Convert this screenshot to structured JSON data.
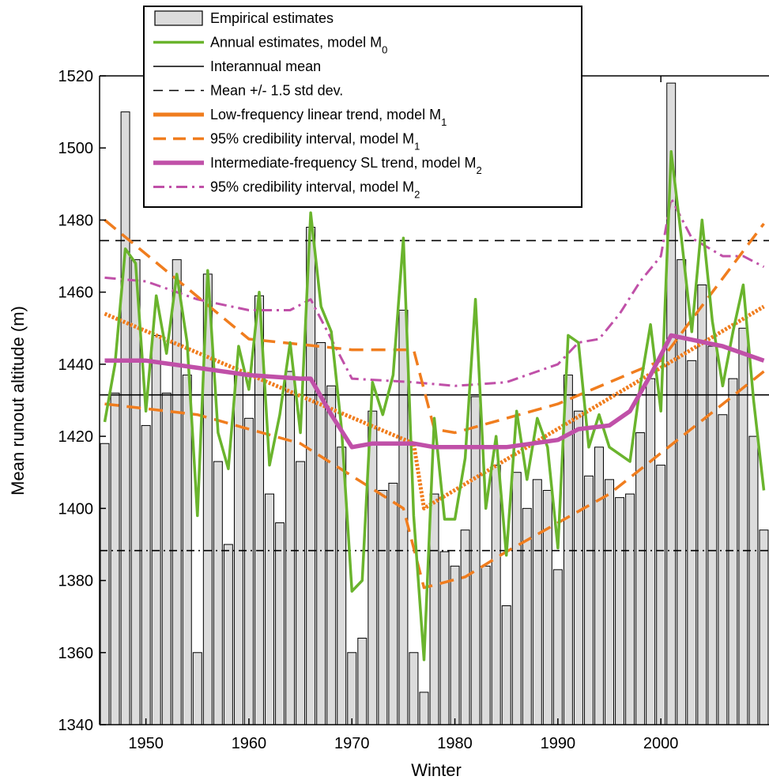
{
  "chart_data": {
    "type": "bar",
    "title": "",
    "xlabel": "Winter",
    "ylabel": "Mean runout altitude (m)",
    "xlim": [
      1945.5,
      2010.5
    ],
    "ylim": [
      1340,
      1520
    ],
    "yticks": [
      1340,
      1360,
      1380,
      1400,
      1420,
      1440,
      1460,
      1480,
      1500,
      1520
    ],
    "xticks": [
      1950,
      1960,
      1970,
      1980,
      1990,
      2000
    ],
    "legend_position": "top-center",
    "colors": {
      "bars": "#dcdcdc",
      "bar_edge": "#000000",
      "annual": "#6ab42d",
      "trend": "#f07d1e",
      "sl_trend": "#c050a8",
      "lines": "#000000"
    },
    "x": [
      1946,
      1947,
      1948,
      1949,
      1950,
      1951,
      1952,
      1953,
      1954,
      1955,
      1956,
      1957,
      1958,
      1959,
      1960,
      1961,
      1962,
      1963,
      1964,
      1965,
      1966,
      1967,
      1968,
      1969,
      1970,
      1971,
      1972,
      1973,
      1974,
      1975,
      1976,
      1977,
      1978,
      1979,
      1980,
      1981,
      1982,
      1983,
      1984,
      1985,
      1986,
      1987,
      1988,
      1989,
      1990,
      1991,
      1992,
      1993,
      1994,
      1995,
      1996,
      1997,
      1998,
      1999,
      2000,
      2001,
      2002,
      2003,
      2004,
      2005,
      2006,
      2007,
      2008,
      2009,
      2010
    ],
    "legend": [
      {
        "label": "Empirical estimates",
        "sub": "",
        "tail": "",
        "style": "bar"
      },
      {
        "label": "Annual estimates, model M",
        "sub": "0",
        "tail": "",
        "style": "green"
      },
      {
        "label": "Interannual mean",
        "sub": "",
        "tail": "",
        "style": "solid"
      },
      {
        "label": "Mean +/- 1.5 std dev.",
        "sub": "",
        "tail": "",
        "style": "dash"
      },
      {
        "label": "Low-frequency linear trend, model M",
        "sub": "1",
        "tail": "",
        "style": "orange"
      },
      {
        "label": "95% credibility interval,  model M",
        "sub": "1",
        "tail": "",
        "style": "orange-dash"
      },
      {
        "label": "Intermediate-frequency SL trend, model M",
        "sub": "2",
        "tail": "",
        "style": "magenta"
      },
      {
        "label": "95% credibility interval, model M",
        "sub": "2",
        "tail": "",
        "style": "magenta-dashdot"
      }
    ],
    "series": [
      {
        "name": "Empirical estimates",
        "kind": "bar",
        "values": [
          1418,
          1432,
          1510,
          1469,
          1423,
          1448,
          1432,
          1469,
          1437,
          1360,
          1465,
          1413,
          1390,
          1437,
          1425,
          1459,
          1404,
          1396,
          1438,
          1413,
          1478,
          1446,
          1434,
          1417,
          1360,
          1364,
          1427,
          1405,
          1407,
          1455,
          1360,
          1349,
          1404,
          1388,
          1384,
          1394,
          1431,
          1384,
          1412,
          1373,
          1410,
          1400,
          1408,
          1405,
          1383,
          1437,
          1427,
          1409,
          1417,
          1408,
          1403,
          1404,
          1421,
          1436,
          1412,
          1518,
          1469,
          1441,
          1462,
          1445,
          1426,
          1436,
          1450,
          1420,
          1394
        ]
      },
      {
        "name": "Annual estimates, model M0",
        "kind": "line",
        "values": [
          1424,
          1440,
          1472,
          1468,
          1427,
          1459,
          1443,
          1465,
          1446,
          1398,
          1466,
          1421,
          1411,
          1445,
          1433,
          1460,
          1412,
          1426,
          1446,
          1421,
          1482,
          1456,
          1449,
          1422,
          1377,
          1380,
          1435,
          1426,
          1437,
          1475,
          1398,
          1358,
          1425,
          1397,
          1397,
          1414,
          1458,
          1400,
          1420,
          1387,
          1427,
          1408,
          1425,
          1417,
          1389,
          1448,
          1446,
          1417,
          1426,
          1417,
          1415,
          1413,
          1434,
          1451,
          1427,
          1499,
          1475,
          1449,
          1480,
          1452,
          1434,
          1449,
          1462,
          1430,
          1405
        ]
      },
      {
        "name": "Interannual mean",
        "kind": "hline",
        "y": 1431.5
      },
      {
        "name": "Mean +1.5 std dev.",
        "kind": "hline",
        "y": 1474.3
      },
      {
        "name": "Mean -1.5 std dev.",
        "kind": "hline",
        "y": 1388.3
      },
      {
        "name": "Low-frequency linear trend, model M1",
        "kind": "polyline",
        "points": [
          [
            1946,
            1454
          ],
          [
            1976,
            1418
          ],
          [
            1977,
            1400
          ],
          [
            2010,
            1456
          ]
        ]
      },
      {
        "name": "95% credibility interval upper, model M1",
        "kind": "polyline",
        "points": [
          [
            1946,
            1480
          ],
          [
            1960,
            1447
          ],
          [
            1970,
            1444
          ],
          [
            1976,
            1444
          ],
          [
            1978,
            1422
          ],
          [
            1980,
            1421
          ],
          [
            1990,
            1429
          ],
          [
            2000,
            1441
          ],
          [
            2010,
            1479
          ]
        ]
      },
      {
        "name": "95% credibility interval lower, model M1",
        "kind": "polyline",
        "points": [
          [
            1946,
            1429
          ],
          [
            1955,
            1426
          ],
          [
            1965,
            1418
          ],
          [
            1975,
            1400
          ],
          [
            1977,
            1378
          ],
          [
            1981,
            1381
          ],
          [
            1985,
            1388
          ],
          [
            1995,
            1404
          ],
          [
            2010,
            1438
          ]
        ]
      },
      {
        "name": "Intermediate-frequency SL trend, model M2",
        "kind": "polyline",
        "points": [
          [
            1946,
            1441
          ],
          [
            1950,
            1441
          ],
          [
            1955,
            1439
          ],
          [
            1960,
            1437
          ],
          [
            1965,
            1436
          ],
          [
            1966,
            1436
          ],
          [
            1968,
            1426
          ],
          [
            1970,
            1417
          ],
          [
            1972,
            1418
          ],
          [
            1976,
            1418
          ],
          [
            1978,
            1417
          ],
          [
            1985,
            1417
          ],
          [
            1990,
            1419
          ],
          [
            1992,
            1422
          ],
          [
            1995,
            1423
          ],
          [
            1997,
            1427
          ],
          [
            1999,
            1437
          ],
          [
            2001,
            1448
          ],
          [
            2006,
            1445
          ],
          [
            2008,
            1443
          ],
          [
            2010,
            1441
          ]
        ]
      },
      {
        "name": "95% credibility interval upper, model M2",
        "kind": "polyline",
        "points": [
          [
            1946,
            1464
          ],
          [
            1950,
            1463
          ],
          [
            1955,
            1458
          ],
          [
            1960,
            1455
          ],
          [
            1964,
            1455
          ],
          [
            1966,
            1458
          ],
          [
            1968,
            1447
          ],
          [
            1970,
            1436
          ],
          [
            1976,
            1435
          ],
          [
            1980,
            1434
          ],
          [
            1985,
            1435
          ],
          [
            1990,
            1440
          ],
          [
            1992,
            1446
          ],
          [
            1994,
            1447
          ],
          [
            1996,
            1454
          ],
          [
            1998,
            1463
          ],
          [
            2000,
            1470
          ],
          [
            2001,
            1486
          ],
          [
            2003,
            1475
          ],
          [
            2006,
            1470
          ],
          [
            2008,
            1470
          ],
          [
            2010,
            1467
          ]
        ]
      },
      {
        "name": "95% credibility interval lower, model M2",
        "kind": "polyline",
        "points": [
          [
            1946,
            1421
          ],
          [
            1950,
            1422
          ],
          [
            1955,
            1416
          ],
          [
            1960,
            1416
          ],
          [
            1964,
            1415
          ],
          [
            1966,
            1412
          ],
          [
            1968,
            1404
          ],
          [
            1969,
            1389
          ],
          [
            1970,
            1378
          ],
          [
            1972,
            1400
          ],
          [
            1976,
            1401
          ],
          [
            1978,
            1400
          ],
          [
            1985,
            1398
          ],
          [
            1990,
            1401
          ],
          [
            1995,
            1403
          ],
          [
            1998,
            1411
          ],
          [
            2000,
            1422
          ],
          [
            2002,
            1424
          ],
          [
            2006,
            1423
          ],
          [
            2008,
            1418
          ],
          [
            2010,
            1416
          ]
        ]
      }
    ]
  }
}
